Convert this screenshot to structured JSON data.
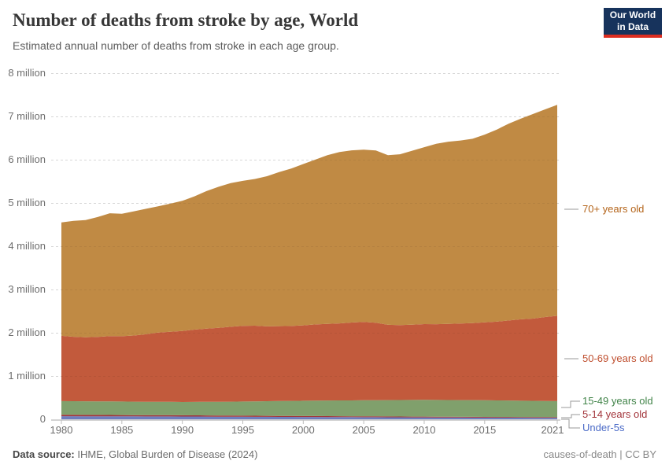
{
  "header": {
    "logo": {
      "line1": "Our World",
      "line2": "in Data",
      "bg": "#17335c",
      "stripe": "#dc2d20"
    }
  },
  "chart_data": {
    "type": "area",
    "stacked": true,
    "title": "Number of deaths from stroke by age, World",
    "subtitle": "Estimated annual number of deaths from stroke in each age group.",
    "xlabel": "",
    "ylabel": "",
    "ylim": [
      0,
      8000000
    ],
    "grid": true,
    "legend_position": "right",
    "unit": "million",
    "x": [
      1980,
      1981,
      1982,
      1983,
      1984,
      1985,
      1986,
      1987,
      1988,
      1989,
      1990,
      1991,
      1992,
      1993,
      1994,
      1995,
      1996,
      1997,
      1998,
      1999,
      2000,
      2001,
      2002,
      2003,
      2004,
      2005,
      2006,
      2007,
      2008,
      2009,
      2010,
      2011,
      2012,
      2013,
      2014,
      2015,
      2016,
      2017,
      2018,
      2019,
      2020,
      2021
    ],
    "x_tick_labels": [
      "1980",
      "1985",
      "1990",
      "1995",
      "2000",
      "2005",
      "2010",
      "2015",
      "2021"
    ],
    "y_tick_labels": [
      "0",
      "1 million",
      "2 million",
      "3 million",
      "4 million",
      "5 million",
      "6 million",
      "7 million",
      "8 million"
    ],
    "values_unit_note": "values in millions of deaths per year, stacked bottom to top",
    "series": [
      {
        "name": "Under-5s",
        "color": "#6d7dbe",
        "label_color": "#4a6ac7",
        "values": [
          0.07,
          0.07,
          0.069,
          0.069,
          0.068,
          0.068,
          0.067,
          0.066,
          0.066,
          0.065,
          0.064,
          0.063,
          0.062,
          0.06,
          0.059,
          0.058,
          0.057,
          0.056,
          0.055,
          0.054,
          0.053,
          0.052,
          0.051,
          0.05,
          0.049,
          0.048,
          0.047,
          0.046,
          0.045,
          0.044,
          0.043,
          0.042,
          0.041,
          0.04,
          0.039,
          0.038,
          0.037,
          0.037,
          0.036,
          0.035,
          0.035,
          0.034
        ]
      },
      {
        "name": "5-14 years old",
        "color": "#a2343a",
        "label_color": "#a2343a",
        "values": [
          0.034,
          0.033,
          0.033,
          0.032,
          0.032,
          0.031,
          0.03,
          0.03,
          0.029,
          0.029,
          0.028,
          0.027,
          0.027,
          0.026,
          0.026,
          0.025,
          0.024,
          0.024,
          0.023,
          0.023,
          0.022,
          0.022,
          0.021,
          0.021,
          0.02,
          0.02,
          0.02,
          0.019,
          0.019,
          0.018,
          0.018,
          0.018,
          0.017,
          0.017,
          0.017,
          0.016,
          0.016,
          0.015,
          0.015,
          0.015,
          0.014,
          0.014
        ]
      },
      {
        "name": "15-49 years old",
        "color": "#80a06c",
        "label_color": "#418449",
        "values": [
          0.316,
          0.315,
          0.314,
          0.313,
          0.312,
          0.311,
          0.31,
          0.31,
          0.309,
          0.309,
          0.308,
          0.312,
          0.316,
          0.319,
          0.323,
          0.327,
          0.333,
          0.338,
          0.344,
          0.349,
          0.355,
          0.358,
          0.362,
          0.365,
          0.368,
          0.372,
          0.375,
          0.379,
          0.382,
          0.386,
          0.389,
          0.388,
          0.388,
          0.387,
          0.387,
          0.386,
          0.384,
          0.382,
          0.379,
          0.377,
          0.375,
          0.372
        ]
      },
      {
        "name": "50-69 years old",
        "color": "#c25a3c",
        "label_color": "#bf4e2e",
        "values": [
          1.51,
          1.49,
          1.48,
          1.49,
          1.51,
          1.51,
          1.53,
          1.56,
          1.6,
          1.62,
          1.64,
          1.67,
          1.69,
          1.71,
          1.73,
          1.75,
          1.75,
          1.73,
          1.73,
          1.73,
          1.74,
          1.76,
          1.77,
          1.78,
          1.8,
          1.81,
          1.79,
          1.74,
          1.73,
          1.74,
          1.75,
          1.75,
          1.76,
          1.77,
          1.78,
          1.8,
          1.82,
          1.85,
          1.88,
          1.9,
          1.94,
          1.97
        ]
      },
      {
        "name": "70+ years old",
        "color": "#c08a44",
        "label_color": "#b4641a",
        "values": [
          2.62,
          2.68,
          2.71,
          2.77,
          2.84,
          2.83,
          2.87,
          2.9,
          2.92,
          2.96,
          3.01,
          3.08,
          3.18,
          3.26,
          3.32,
          3.35,
          3.39,
          3.47,
          3.56,
          3.64,
          3.73,
          3.81,
          3.9,
          3.96,
          3.98,
          3.98,
          3.98,
          3.92,
          3.95,
          4.02,
          4.09,
          4.17,
          4.21,
          4.23,
          4.26,
          4.34,
          4.44,
          4.55,
          4.64,
          4.73,
          4.8,
          4.88
        ]
      }
    ]
  },
  "footer": {
    "source_label": "Data source:",
    "source": "IHME, Global Burden of Disease (2024)",
    "license": "causes-of-death | CC BY"
  }
}
